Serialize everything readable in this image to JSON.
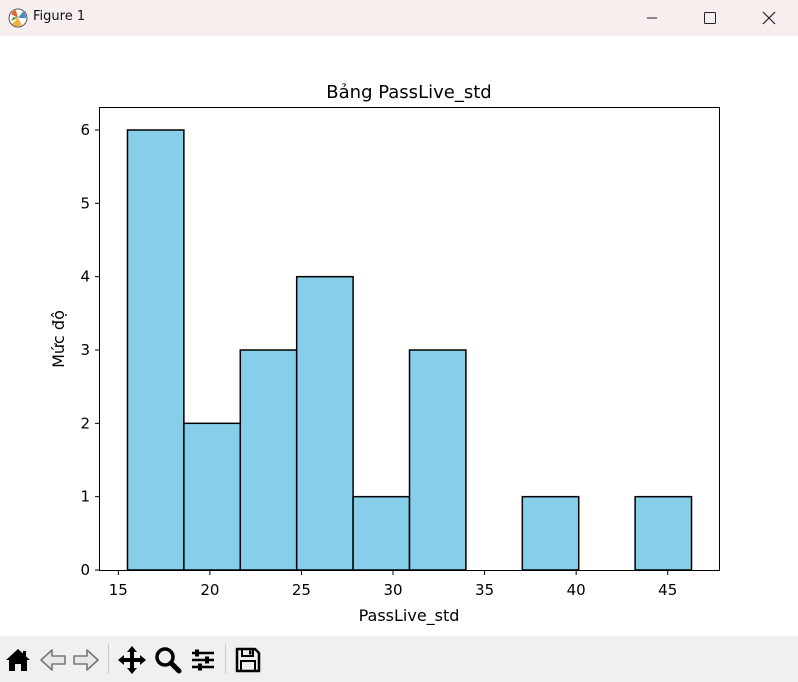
{
  "window": {
    "title": "Figure 1",
    "controls": [
      "minimize",
      "maximize",
      "close"
    ]
  },
  "toolbar": {
    "buttons": [
      "home-icon",
      "back-icon",
      "forward-icon",
      "pan-icon",
      "zoom-icon",
      "configure-subplots-icon",
      "save-icon"
    ]
  },
  "colors": {
    "bar_fill": "#87ceeb",
    "bar_edge": "#000000",
    "titlebar_bg": "#f7efed",
    "toolbar_bg": "#f0f0f0"
  },
  "chart_data": {
    "type": "bar",
    "title": "Bảng PassLive_std",
    "xlabel": "PassLive_std",
    "ylabel": "Mức độ",
    "bin_edges": [
      15.5,
      18.58,
      21.66,
      24.74,
      27.82,
      30.9,
      33.98,
      37.06,
      40.14,
      43.22,
      46.3
    ],
    "values": [
      6,
      2,
      3,
      4,
      1,
      3,
      0,
      1,
      0,
      1
    ],
    "xlim": [
      14.0,
      47.8
    ],
    "ylim": [
      0,
      6.3
    ],
    "xticks": [
      15,
      20,
      25,
      30,
      35,
      40,
      45
    ],
    "yticks": [
      0,
      1,
      2,
      3,
      4,
      5,
      6
    ],
    "grid": false
  }
}
